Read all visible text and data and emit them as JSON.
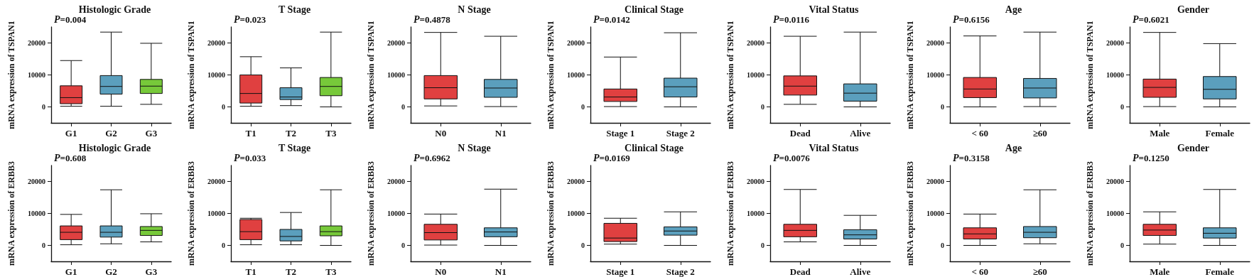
{
  "chart_data": [
    {
      "type": "box",
      "title": "Histologic Grade",
      "ylabel": "mRNA expression of TSPAN1",
      "annotations": [
        "P=0.004"
      ],
      "categories": [
        "G1",
        "G2",
        "G3"
      ],
      "colors": [
        "#e04040",
        "#5b9fbd",
        "#77c93a"
      ],
      "ylim": [
        -5000,
        25000
      ],
      "yticks": [
        0,
        10000,
        20000
      ],
      "boxes": [
        {
          "low": 200,
          "q1": 1000,
          "median": 2900,
          "q3": 6600,
          "high": 14500
        },
        {
          "low": 200,
          "q1": 4000,
          "median": 6400,
          "q3": 9800,
          "high": 23400
        },
        {
          "low": 800,
          "q1": 4200,
          "median": 6500,
          "q3": 8600,
          "high": 19900
        }
      ]
    },
    {
      "type": "box",
      "title": "T Stage",
      "ylabel": "mRNA expression of TSPAN1",
      "annotations": [
        "P=0.023"
      ],
      "categories": [
        "T1",
        "T2",
        "T3"
      ],
      "colors": [
        "#e04040",
        "#5b9fbd",
        "#77c93a"
      ],
      "ylim": [
        -5000,
        25000
      ],
      "yticks": [
        0,
        10000,
        20000
      ],
      "boxes": [
        {
          "low": 200,
          "q1": 1200,
          "median": 4200,
          "q3": 10000,
          "high": 15700
        },
        {
          "low": 400,
          "q1": 2300,
          "median": 3100,
          "q3": 6000,
          "high": 12200
        },
        {
          "low": 0,
          "q1": 3500,
          "median": 6400,
          "q3": 9200,
          "high": 23400
        }
      ]
    },
    {
      "type": "box",
      "title": "N Stage",
      "ylabel": "mRNA expression of TSPAN1",
      "annotations": [
        "P=0.4878"
      ],
      "categories": [
        "N0",
        "N1"
      ],
      "colors": [
        "#e04040",
        "#5b9fbd"
      ],
      "ylim": [
        -5000,
        25000
      ],
      "yticks": [
        0,
        10000,
        20000
      ],
      "boxes": [
        {
          "low": 300,
          "q1": 2500,
          "median": 6000,
          "q3": 9800,
          "high": 23300
        },
        {
          "low": 100,
          "q1": 3000,
          "median": 5900,
          "q3": 8600,
          "high": 22100
        }
      ]
    },
    {
      "type": "box",
      "title": "Clinical Stage",
      "ylabel": "mRNA expression of TSPAN1",
      "annotations": [
        "P=0.0142"
      ],
      "categories": [
        "Stage 1",
        "Stage 2"
      ],
      "colors": [
        "#e04040",
        "#5b9fbd"
      ],
      "ylim": [
        -5000,
        25000
      ],
      "yticks": [
        0,
        10000,
        20000
      ],
      "boxes": [
        {
          "low": 100,
          "q1": 1700,
          "median": 3100,
          "q3": 5600,
          "high": 15600
        },
        {
          "low": 0,
          "q1": 3100,
          "median": 6300,
          "q3": 9000,
          "high": 23200
        }
      ]
    },
    {
      "type": "box",
      "title": "Vital Status",
      "ylabel": "mRNA expression of TSPAN1",
      "annotations": [
        "P=0.0116"
      ],
      "categories": [
        "Dead",
        "Alive"
      ],
      "colors": [
        "#e04040",
        "#5b9fbd"
      ],
      "ylim": [
        -5000,
        25000
      ],
      "yticks": [
        0,
        10000,
        20000
      ],
      "boxes": [
        {
          "low": 800,
          "q1": 3700,
          "median": 6500,
          "q3": 9700,
          "high": 22100
        },
        {
          "low": 0,
          "q1": 1800,
          "median": 4300,
          "q3": 7200,
          "high": 23400
        }
      ]
    },
    {
      "type": "box",
      "title": "Age",
      "ylabel": "mRNA expression of TSPAN1",
      "annotations": [
        "P=0.6156"
      ],
      "categories": [
        "< 60",
        "≥60"
      ],
      "colors": [
        "#e04040",
        "#5b9fbd"
      ],
      "ylim": [
        -5000,
        25000
      ],
      "yticks": [
        0,
        10000,
        20000
      ],
      "boxes": [
        {
          "low": 0,
          "q1": 2900,
          "median": 5600,
          "q3": 9200,
          "high": 22200
        },
        {
          "low": 100,
          "q1": 2800,
          "median": 5900,
          "q3": 8900,
          "high": 23400
        }
      ]
    },
    {
      "type": "box",
      "title": "Gender",
      "ylabel": "mRNA expression of TSPAN1",
      "annotations": [
        "P=0.6021"
      ],
      "categories": [
        "Male",
        "Female"
      ],
      "colors": [
        "#e04040",
        "#5b9fbd"
      ],
      "ylim": [
        -5000,
        25000
      ],
      "yticks": [
        0,
        10000,
        20000
      ],
      "boxes": [
        {
          "low": 100,
          "q1": 3000,
          "median": 6100,
          "q3": 8700,
          "high": 23300
        },
        {
          "low": 0,
          "q1": 2500,
          "median": 5500,
          "q3": 9500,
          "high": 19800
        }
      ]
    },
    {
      "type": "box",
      "title": "Histologic Grade",
      "ylabel": "mRNA expression of ERBB3",
      "annotations": [
        "P=0.608"
      ],
      "categories": [
        "G1",
        "G2",
        "G3"
      ],
      "colors": [
        "#e04040",
        "#5b9fbd",
        "#77c93a"
      ],
      "ylim": [
        -5000,
        25000
      ],
      "yticks": [
        0,
        10000,
        20000
      ],
      "boxes": [
        {
          "low": 200,
          "q1": 1800,
          "median": 4100,
          "q3": 6100,
          "high": 9700
        },
        {
          "low": 500,
          "q1": 2600,
          "median": 4100,
          "q3": 6100,
          "high": 17400
        },
        {
          "low": 1100,
          "q1": 3100,
          "median": 4700,
          "q3": 5900,
          "high": 9900
        }
      ]
    },
    {
      "type": "box",
      "title": "T Stage",
      "ylabel": "mRNA expression of ERBB3",
      "annotations": [
        "P=0.033"
      ],
      "categories": [
        "T1",
        "T2",
        "T3"
      ],
      "colors": [
        "#e04040",
        "#5b9fbd",
        "#77c93a"
      ],
      "ylim": [
        -5000,
        25000
      ],
      "yticks": [
        0,
        10000,
        20000
      ],
      "boxes": [
        {
          "low": 200,
          "q1": 1800,
          "median": 4300,
          "q3": 8100,
          "high": 8500
        },
        {
          "low": 200,
          "q1": 1400,
          "median": 2800,
          "q3": 5000,
          "high": 10300
        },
        {
          "low": 0,
          "q1": 3000,
          "median": 4300,
          "q3": 6100,
          "high": 17400
        }
      ]
    },
    {
      "type": "box",
      "title": "N Stage",
      "ylabel": "mRNA expression of ERBB3",
      "annotations": [
        "P=0.6962"
      ],
      "categories": [
        "N0",
        "N1"
      ],
      "colors": [
        "#e04040",
        "#5b9fbd"
      ],
      "ylim": [
        -5000,
        25000
      ],
      "yticks": [
        0,
        10000,
        20000
      ],
      "boxes": [
        {
          "low": 100,
          "q1": 1700,
          "median": 4000,
          "q3": 6600,
          "high": 9800
        },
        {
          "low": 0,
          "q1": 2700,
          "median": 4200,
          "q3": 5500,
          "high": 17600
        }
      ]
    },
    {
      "type": "box",
      "title": "Clinical Stage",
      "ylabel": "mRNA expression of ERBB3",
      "annotations": [
        "P=0.0169"
      ],
      "categories": [
        "Stage 1",
        "Stage 2"
      ],
      "colors": [
        "#e04040",
        "#5b9fbd"
      ],
      "ylim": [
        -5000,
        25000
      ],
      "yticks": [
        0,
        10000,
        20000
      ],
      "boxes": [
        {
          "low": 400,
          "q1": 1200,
          "median": 2300,
          "q3": 6900,
          "high": 8500
        },
        {
          "low": 0,
          "q1": 3200,
          "median": 4500,
          "q3": 5800,
          "high": 10500
        }
      ]
    },
    {
      "type": "box",
      "title": "Vital Status",
      "ylabel": "mRNA expression of ERBB3",
      "annotations": [
        "P=0.0076"
      ],
      "categories": [
        "Dead",
        "Alive"
      ],
      "colors": [
        "#e04040",
        "#5b9fbd"
      ],
      "ylim": [
        -5000,
        25000
      ],
      "yticks": [
        0,
        10000,
        20000
      ],
      "boxes": [
        {
          "low": 1100,
          "q1": 2700,
          "median": 4700,
          "q3": 6600,
          "high": 17500
        },
        {
          "low": 0,
          "q1": 2000,
          "median": 3300,
          "q3": 4900,
          "high": 9400
        }
      ]
    },
    {
      "type": "box",
      "title": "Age",
      "ylabel": "mRNA expression of ERBB3",
      "annotations": [
        "P=0.3158"
      ],
      "categories": [
        "< 60",
        "≥60"
      ],
      "colors": [
        "#e04040",
        "#5b9fbd"
      ],
      "ylim": [
        -5000,
        25000
      ],
      "yticks": [
        0,
        10000,
        20000
      ],
      "boxes": [
        {
          "low": 0,
          "q1": 2000,
          "median": 3600,
          "q3": 5500,
          "high": 9800
        },
        {
          "low": 500,
          "q1": 2400,
          "median": 4100,
          "q3": 5900,
          "high": 17400
        }
      ]
    },
    {
      "type": "box",
      "title": "Gender",
      "ylabel": "mRNA expression of ERBB3",
      "annotations": [
        "P=0.1250"
      ],
      "categories": [
        "Male",
        "Female"
      ],
      "colors": [
        "#e04040",
        "#5b9fbd"
      ],
      "ylim": [
        -5000,
        25000
      ],
      "yticks": [
        0,
        10000,
        20000
      ],
      "boxes": [
        {
          "low": 400,
          "q1": 3100,
          "median": 4800,
          "q3": 6600,
          "high": 10500
        },
        {
          "low": 0,
          "q1": 2300,
          "median": 3800,
          "q3": 5500,
          "high": 17500
        }
      ]
    }
  ]
}
